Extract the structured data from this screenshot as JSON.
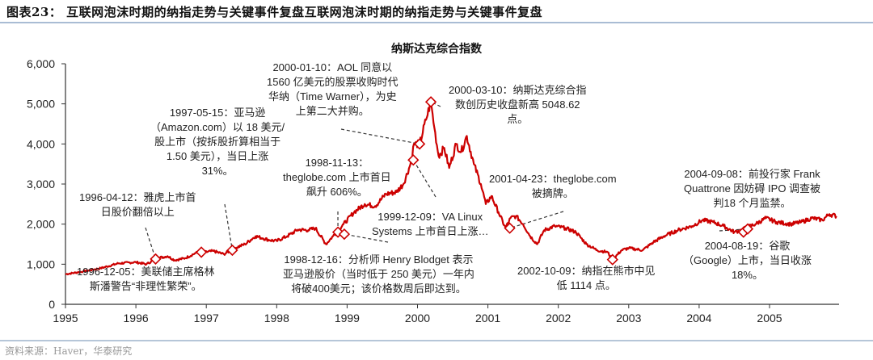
{
  "header": {
    "figure_title": "图表23：  互联网泡沫时期的纳指走势与关键事件复盘互联网泡沫时期的纳指走势与关键事件复盘"
  },
  "footer": {
    "source": "资料来源：Haver，华泰研究"
  },
  "chart_data": {
    "type": "line",
    "title": "纳斯达克综合指数",
    "xlabel": "",
    "ylabel": "",
    "ylim": [
      0,
      6000
    ],
    "xlim": [
      1995,
      2006
    ],
    "grid": false,
    "legend": null,
    "yticks": [
      "0",
      "1,000",
      "2,000",
      "3,000",
      "4,000",
      "5,000",
      "6,000"
    ],
    "xticks": [
      "1995",
      "1996",
      "1997",
      "1998",
      "1999",
      "2000",
      "2001",
      "2002",
      "2003",
      "2004",
      "2005"
    ],
    "line_color": "#cc0000",
    "series": [
      {
        "name": "纳斯达克综合指数",
        "x": [
          1995.0,
          1995.25,
          1995.5,
          1995.75,
          1996.0,
          1996.15,
          1996.3,
          1996.45,
          1996.55,
          1996.7,
          1996.85,
          1996.95,
          1997.1,
          1997.25,
          1997.4,
          1997.55,
          1997.7,
          1997.8,
          1997.9,
          1998.0,
          1998.15,
          1998.3,
          1998.45,
          1998.55,
          1998.7,
          1998.8,
          1998.95,
          1999.1,
          1999.25,
          1999.4,
          1999.55,
          1999.7,
          1999.8,
          1999.9,
          1999.95,
          2000.03,
          2000.12,
          2000.19,
          2000.24,
          2000.3,
          2000.38,
          2000.45,
          2000.55,
          2000.62,
          2000.7,
          2000.8,
          2000.9,
          2000.97,
          2001.05,
          2001.15,
          2001.25,
          2001.32,
          2001.4,
          2001.5,
          2001.6,
          2001.7,
          2001.8,
          2001.95,
          2002.1,
          2002.25,
          2002.4,
          2002.55,
          2002.7,
          2002.77,
          2002.9,
          2003.0,
          2003.2,
          2003.35,
          2003.5,
          2003.7,
          2003.9,
          2004.05,
          2004.2,
          2004.35,
          2004.5,
          2004.6,
          2004.68,
          2004.8,
          2004.95,
          2005.1,
          2005.3,
          2005.45,
          2005.6,
          2005.75,
          2005.85,
          2005.95
        ],
        "values": [
          750,
          820,
          900,
          1020,
          1050,
          1000,
          1150,
          1200,
          1100,
          1150,
          1280,
          1290,
          1330,
          1250,
          1400,
          1500,
          1700,
          1650,
          1600,
          1580,
          1700,
          1860,
          1850,
          1900,
          1500,
          1700,
          2000,
          2300,
          2500,
          2450,
          2750,
          2800,
          3000,
          3500,
          4000,
          4000,
          4600,
          5048,
          4400,
          3700,
          3900,
          3400,
          4000,
          3800,
          4200,
          3500,
          3000,
          2500,
          2700,
          2300,
          1900,
          2150,
          2200,
          2000,
          1700,
          1500,
          1850,
          1950,
          1900,
          1800,
          1500,
          1350,
          1300,
          1114,
          1350,
          1400,
          1350,
          1550,
          1700,
          1850,
          1950,
          2100,
          2050,
          1950,
          1800,
          1850,
          1920,
          2000,
          2150,
          2050,
          2000,
          2050,
          2150,
          2100,
          2250,
          2200
        ]
      }
    ],
    "event_markers": [
      {
        "date": "1996-04-12",
        "x": 1996.28,
        "value": 1130
      },
      {
        "date": "1996-12-05",
        "x": 1996.93,
        "value": 1300
      },
      {
        "date": "1997-05-15",
        "x": 1997.37,
        "value": 1350
      },
      {
        "date": "1998-11-13",
        "x": 1998.87,
        "value": 1800
      },
      {
        "date": "1998-12-16",
        "x": 1998.96,
        "value": 1750
      },
      {
        "date": "1999-12-09",
        "x": 1999.94,
        "value": 3600
      },
      {
        "date": "2000-01-10",
        "x": 2000.03,
        "value": 4000
      },
      {
        "date": "2000-03-10",
        "x": 2000.19,
        "value": 5048.62
      },
      {
        "date": "2001-04-23",
        "x": 2001.31,
        "value": 1900
      },
      {
        "date": "2002-10-09",
        "x": 2002.77,
        "value": 1114
      },
      {
        "date": "2004-08-19",
        "x": 2004.63,
        "value": 1800
      },
      {
        "date": "2004-09-08",
        "x": 2004.69,
        "value": 1880
      }
    ],
    "annotations": [
      {
        "id": "a1996",
        "lines": [
          "1996-04-12：雅虎上市首",
          "日股价翻倍以上"
        ]
      },
      {
        "id": "a1996b",
        "lines": [
          "1996-12-05：美联储主席格林",
          "斯潘警告“非理性繁荣”。"
        ]
      },
      {
        "id": "a1997",
        "lines": [
          "1997-05-15：亚马逊",
          "（Amazon.com）以 18 美元/",
          "股上市（按拆股折算相当于",
          "1.50 美元），当日上涨",
          "31%。"
        ]
      },
      {
        "id": "a1998a",
        "lines": [
          "1998-11-13：",
          "theglobe.com 上市首日",
          "飙升 606%。"
        ]
      },
      {
        "id": "a1998b",
        "lines": [
          "1998-12-16：分析师 Henry Blodget 表示",
          "亚马逊股价（当时低于 250 美元）一年内",
          "将破400美元；该价格数周后即达到。"
        ]
      },
      {
        "id": "a1999",
        "lines": [
          "1999-12-09：VA Linux",
          "Systems 上市首日上涨…"
        ]
      },
      {
        "id": "a2000a",
        "lines": [
          "2000-01-10：AOL 同意以",
          "1560 亿美元的股票收购时代",
          "华纳（Time Warner），为史",
          "上第二大并购。"
        ]
      },
      {
        "id": "a2000b",
        "lines": [
          "2000-03-10：纳斯达克综合指",
          "数创历史收盘新高 5048.62",
          "点。"
        ]
      },
      {
        "id": "a2001",
        "lines": [
          "2001-04-23：theglobe.com",
          "被摘牌。"
        ]
      },
      {
        "id": "a2002",
        "lines": [
          "2002-10-09：纳指在熊市中见",
          "低 1114 点。"
        ]
      },
      {
        "id": "a2004a",
        "lines": [
          "2004-09-08：前投行家 Frank",
          "Quattrone 因妨碍 IPO 调查被",
          "判18 个月监禁。"
        ]
      },
      {
        "id": "a2004b",
        "lines": [
          "2004-08-19：谷歌",
          "（Google）上市，当日收涨",
          "18%。"
        ]
      }
    ]
  }
}
